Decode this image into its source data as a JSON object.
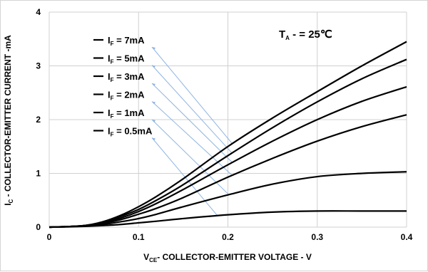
{
  "chart_data": {
    "type": "line",
    "xlabel": "V",
    "xlabel_sub": "CE",
    "xlabel_rest": "- COLLECTOR-EMITTER VOLTAGE - V",
    "ylabel": "I",
    "ylabel_sub": "C",
    "ylabel_rest": " - COLLECTOR-EMITTER CURRENT -mA",
    "xlim": [
      0,
      0.4
    ],
    "ylim": [
      0,
      4
    ],
    "xticks": [
      "0",
      "0.1",
      "0.2",
      "0.3",
      "0.4"
    ],
    "yticks": [
      "0",
      "1",
      "2",
      "3",
      "4"
    ],
    "grid": true,
    "condition": {
      "main": "T",
      "sub": "A",
      "rest": " - = 25℃"
    },
    "series": [
      {
        "name": "7mA",
        "prefix": "I",
        "sub": "F",
        "text": " = 7mA",
        "x": [
          0,
          0.02,
          0.04,
          0.06,
          0.08,
          0.1,
          0.12,
          0.15,
          0.2,
          0.25,
          0.3,
          0.35,
          0.4
        ],
        "y": [
          0,
          0.01,
          0.03,
          0.1,
          0.22,
          0.38,
          0.57,
          0.9,
          1.5,
          2.03,
          2.52,
          3.0,
          3.45
        ]
      },
      {
        "name": "5mA",
        "prefix": "I",
        "sub": "F",
        "text": " = 5mA",
        "x": [
          0,
          0.02,
          0.04,
          0.06,
          0.08,
          0.1,
          0.12,
          0.15,
          0.2,
          0.25,
          0.3,
          0.35,
          0.4
        ],
        "y": [
          0,
          0.01,
          0.03,
          0.09,
          0.2,
          0.33,
          0.5,
          0.79,
          1.33,
          1.85,
          2.33,
          2.76,
          3.12
        ]
      },
      {
        "name": "3mA",
        "prefix": "I",
        "sub": "F",
        "text": " = 3mA",
        "x": [
          0,
          0.02,
          0.04,
          0.06,
          0.08,
          0.1,
          0.12,
          0.15,
          0.2,
          0.25,
          0.3,
          0.35,
          0.4
        ],
        "y": [
          0,
          0.01,
          0.03,
          0.08,
          0.17,
          0.29,
          0.44,
          0.7,
          1.16,
          1.6,
          2.0,
          2.34,
          2.61
        ]
      },
      {
        "name": "2mA",
        "prefix": "I",
        "sub": "F",
        "text": " = 2mA",
        "x": [
          0,
          0.02,
          0.04,
          0.06,
          0.08,
          0.1,
          0.12,
          0.15,
          0.2,
          0.25,
          0.3,
          0.35,
          0.4
        ],
        "y": [
          0,
          0.01,
          0.03,
          0.07,
          0.14,
          0.24,
          0.35,
          0.55,
          0.93,
          1.28,
          1.6,
          1.87,
          2.09
        ]
      },
      {
        "name": "1mA",
        "prefix": "I",
        "sub": "F",
        "text": " = 1mA",
        "x": [
          0,
          0.02,
          0.04,
          0.06,
          0.08,
          0.1,
          0.12,
          0.15,
          0.2,
          0.25,
          0.3,
          0.35,
          0.4
        ],
        "y": [
          0,
          0.01,
          0.02,
          0.05,
          0.1,
          0.16,
          0.24,
          0.38,
          0.6,
          0.8,
          0.94,
          1.0,
          1.03
        ]
      },
      {
        "name": "0.5mA",
        "prefix": "I",
        "sub": "F",
        "text": " = 0.5mA",
        "x": [
          0,
          0.02,
          0.04,
          0.06,
          0.08,
          0.1,
          0.12,
          0.15,
          0.2,
          0.25,
          0.3,
          0.35,
          0.4
        ],
        "y": [
          0,
          0.005,
          0.015,
          0.03,
          0.05,
          0.08,
          0.11,
          0.16,
          0.23,
          0.28,
          0.3,
          0.3,
          0.3
        ]
      }
    ],
    "colors": {
      "curve": "#000000",
      "grid": "#d0d0d0",
      "leader": "#8eb4e3",
      "frame": "#d4d4d4"
    }
  }
}
